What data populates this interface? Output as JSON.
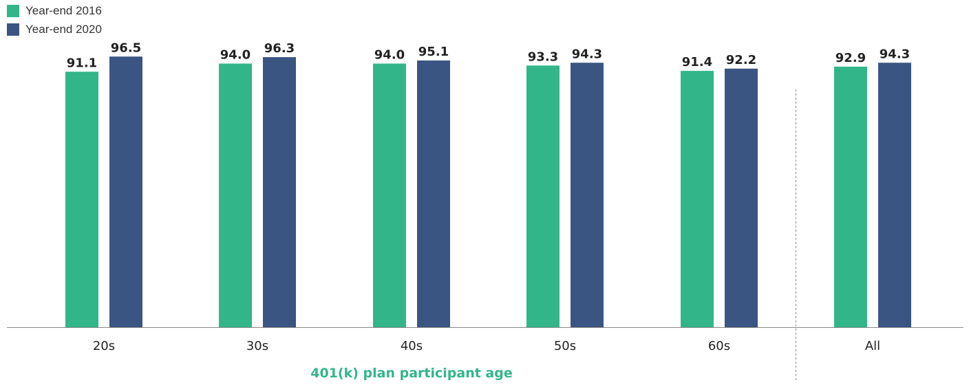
{
  "colors": {
    "series_2016": "#33b58a",
    "series_2020": "#3b5582",
    "axis": "#888888",
    "x_title": "#33b58a"
  },
  "legend": {
    "items": [
      {
        "label": "Year-end 2016",
        "color": "#33b58a"
      },
      {
        "label": "Year-end 2020",
        "color": "#3b5582"
      }
    ]
  },
  "chart_data": {
    "type": "bar",
    "categories": [
      "20s",
      "30s",
      "40s",
      "50s",
      "60s",
      "All"
    ],
    "series": [
      {
        "name": "Year-end 2016",
        "values": [
          91.1,
          94.0,
          94.0,
          93.3,
          91.4,
          92.9
        ]
      },
      {
        "name": "Year-end 2020",
        "values": [
          96.5,
          96.3,
          95.1,
          94.3,
          92.2,
          94.3
        ]
      }
    ],
    "xlabel": "401(k) plan participant age",
    "ylim": [
      0,
      100
    ],
    "grid": false,
    "legend_position": "top-left",
    "separator_before": "All"
  }
}
